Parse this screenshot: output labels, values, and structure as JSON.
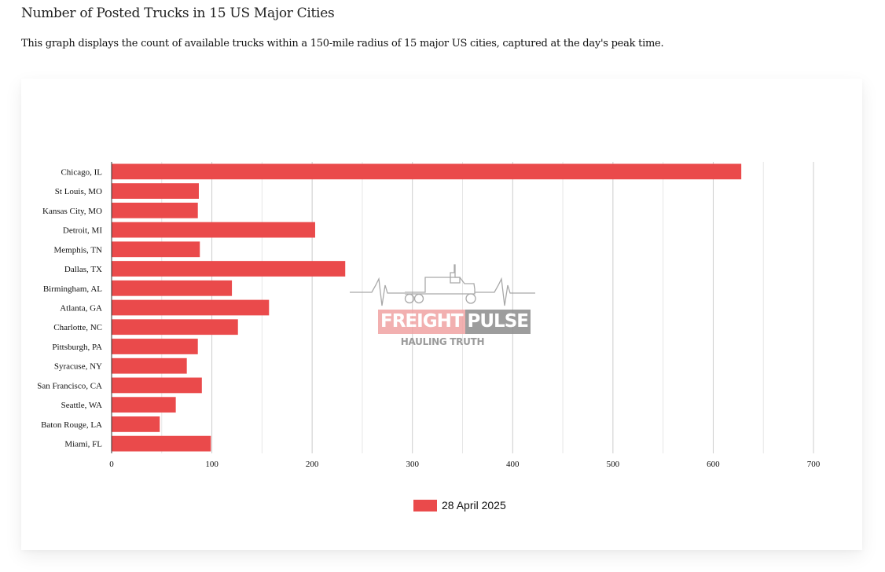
{
  "page": {
    "title": "Number of Posted Trucks in 15 US Major Cities",
    "subtitle": "This graph displays the count of available trucks within a 150-mile radius of 15 major US cities, captured at the day's peak time."
  },
  "watermark": {
    "brand_part1": "FREIGHT",
    "brand_part2": "PULSE",
    "tagline": "HAULING TRUTH",
    "icon": "truck-heartbeat-icon"
  },
  "colors": {
    "bar": "#ea4a4b",
    "grid": "#d6d6d6",
    "axis": "#333333"
  },
  "chart_data": {
    "type": "bar",
    "orientation": "horizontal",
    "title": "Number of Posted Trucks in 15 US Major Cities",
    "xlabel": "",
    "ylabel": "",
    "categories": [
      "Chicago, IL",
      "St Louis, MO",
      "Kansas City, MO",
      "Detroit, MI",
      "Memphis, TN",
      "Dallas, TX",
      "Birmingham, AL",
      "Atlanta, GA",
      "Charlotte, NC",
      "Pittsburgh, PA",
      "Syracuse, NY",
      "San Francisco, CA",
      "Seattle, WA",
      "Baton Rouge, LA",
      "Miami, FL"
    ],
    "series": [
      {
        "name": "28 April 2025",
        "values": [
          628,
          87,
          86,
          203,
          88,
          233,
          120,
          157,
          126,
          86,
          75,
          90,
          64,
          48,
          99
        ]
      }
    ],
    "xlim": [
      0,
      700
    ],
    "x_ticks": [
      0,
      100,
      200,
      300,
      400,
      500,
      600,
      700
    ],
    "minor_grid_step": 50,
    "grid": true,
    "legend": {
      "position": "bottom-center",
      "entries": [
        "28 April 2025"
      ]
    }
  }
}
